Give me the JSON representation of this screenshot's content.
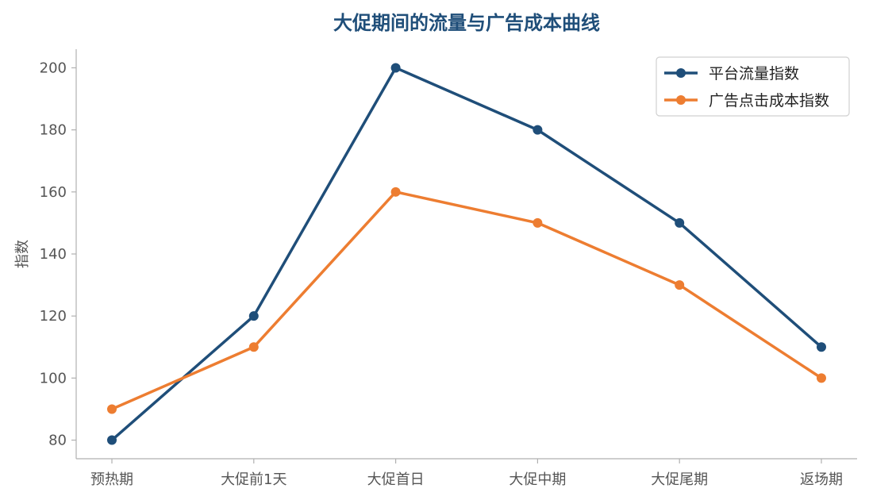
{
  "chart_data": {
    "type": "line",
    "title": "大促期间的流量与广告成本曲线",
    "xlabel": "",
    "ylabel": "指数",
    "categories": [
      "预热期",
      "大促前1天",
      "大促首日",
      "大促中期",
      "大促尾期",
      "返场期"
    ],
    "series": [
      {
        "name": "平台流量指数",
        "values": [
          80,
          120,
          200,
          180,
          150,
          110
        ],
        "color": "#1F4E79"
      },
      {
        "name": "广告点击成本指数",
        "values": [
          90,
          110,
          160,
          150,
          130,
          100
        ],
        "color": "#ED7D31"
      }
    ],
    "ylim": [
      74,
      206
    ],
    "yticks": [
      80,
      100,
      120,
      140,
      160,
      180,
      200
    ],
    "grid": false,
    "legend_position": "top-right",
    "marker": "circle"
  }
}
